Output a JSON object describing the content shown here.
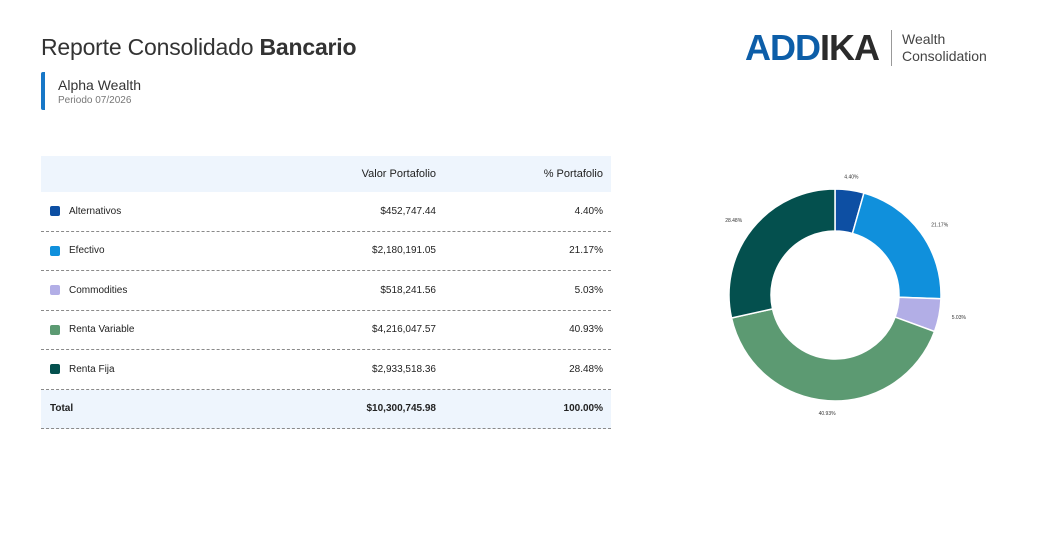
{
  "header": {
    "title_light": "Reporte Consolidado",
    "title_bold": "Bancario",
    "client_name": "Alpha Wealth",
    "period": "Periodo 07/2026"
  },
  "logo": {
    "mark_blue": "ADD",
    "mark_dark": "IKA",
    "line1": "Wealth",
    "line2": "Consolidation"
  },
  "table": {
    "columns": [
      "",
      "Valor Portafolio",
      "% Portafolio"
    ],
    "rows": [
      {
        "name": "Alternativos",
        "value": "$452,747.44",
        "pct": "4.40%",
        "color": "#0d4fa3"
      },
      {
        "name": "Efectivo",
        "value": "$2,180,191.05",
        "pct": "21.17%",
        "color": "#1090dc"
      },
      {
        "name": "Commodities",
        "value": "$518,241.56",
        "pct": "5.03%",
        "color": "#b2aee6"
      },
      {
        "name": "Renta Variable",
        "value": "$4,216,047.57",
        "pct": "40.93%",
        "color": "#5c9a72"
      },
      {
        "name": "Renta Fija",
        "value": "$2,933,518.36",
        "pct": "28.48%",
        "color": "#04504e"
      }
    ],
    "total": {
      "name": "Total",
      "value": "$10,300,745.98",
      "pct": "100.00%"
    }
  },
  "chart_data": {
    "type": "pie",
    "donut": true,
    "categories": [
      "Alternativos",
      "Efectivo",
      "Commodities",
      "Renta Variable",
      "Renta Fija"
    ],
    "values": [
      4.4,
      21.17,
      5.03,
      40.93,
      28.48
    ],
    "data_labels": [
      "4.40%",
      "21.17%",
      "5.03%",
      "40.93%",
      "28.48%"
    ],
    "colors": [
      "#0d4fa3",
      "#1090dc",
      "#b2aee6",
      "#5c9a72",
      "#04504e"
    ],
    "legend": "none"
  }
}
